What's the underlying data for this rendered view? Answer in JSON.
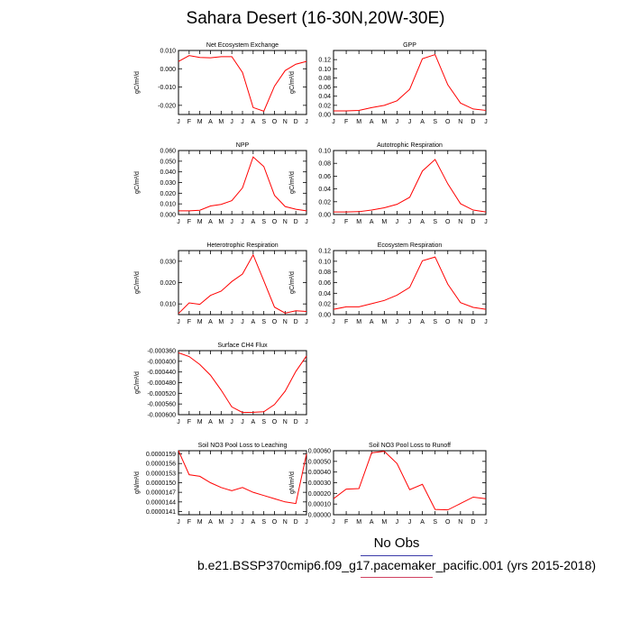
{
  "figure": {
    "title": "Sahara Desert (16-30N,20W-30E)",
    "legend_label": "No Obs",
    "caption": "b.e21.BSSP370cmip6.f09_g17.pacemaker_pacific.001 (yrs 2015-2018)",
    "line_color": "#ff0000",
    "legend_rule_color": "#3a3aa8",
    "caption_rule_color": "#d04060"
  },
  "chart_data": [
    {
      "type": "line",
      "title": "Net Ecosystem Exchange",
      "ylabel": "gC/m^2/d",
      "categories": [
        "J",
        "F",
        "M",
        "A",
        "M",
        "J",
        "J",
        "A",
        "S",
        "O",
        "N",
        "D",
        "J"
      ],
      "ylim": [
        -0.025,
        0.01
      ],
      "yticks": [
        0.01,
        0.0,
        -0.01,
        -0.02
      ],
      "yticklabels": [
        "0.010",
        "0.000",
        "-0.010",
        "-0.020"
      ],
      "series": [
        {
          "values": [
            0.004,
            0.0072,
            0.0062,
            0.006,
            0.0066,
            0.0066,
            -0.002,
            -0.0212,
            -0.0232,
            -0.0095,
            -0.001,
            0.0025,
            0.004
          ]
        }
      ]
    },
    {
      "type": "line",
      "title": "GPP",
      "ylabel": "gC/m^2/d",
      "categories": [
        "J",
        "F",
        "M",
        "A",
        "M",
        "J",
        "J",
        "A",
        "S",
        "O",
        "N",
        "D",
        "J"
      ],
      "ylim": [
        0.0,
        0.14
      ],
      "yticks": [
        0.0,
        0.02,
        0.04,
        0.06,
        0.08,
        0.1,
        0.12
      ],
      "yticklabels": [
        "0.00",
        "0.02",
        "0.04",
        "0.06",
        "0.08",
        "0.10",
        "0.12"
      ],
      "series": [
        {
          "values": [
            0.008,
            0.008,
            0.009,
            0.015,
            0.02,
            0.03,
            0.055,
            0.122,
            0.131,
            0.065,
            0.025,
            0.012,
            0.009
          ]
        }
      ]
    },
    {
      "type": "line",
      "title": "NPP",
      "ylabel": "gC/m^2/d",
      "categories": [
        "J",
        "F",
        "M",
        "A",
        "M",
        "J",
        "J",
        "A",
        "S",
        "O",
        "N",
        "D",
        "J"
      ],
      "ylim": [
        0.0,
        0.06
      ],
      "yticks": [
        0.0,
        0.01,
        0.02,
        0.03,
        0.04,
        0.05,
        0.06
      ],
      "yticklabels": [
        "0.000",
        "0.010",
        "0.020",
        "0.030",
        "0.040",
        "0.050",
        "0.060"
      ],
      "series": [
        {
          "values": [
            0.0035,
            0.0035,
            0.004,
            0.008,
            0.0095,
            0.013,
            0.025,
            0.054,
            0.045,
            0.018,
            0.0075,
            0.005,
            0.0035
          ]
        }
      ]
    },
    {
      "type": "line",
      "title": "Autotrophic Respiration",
      "ylabel": "gC/m^2/d",
      "categories": [
        "J",
        "F",
        "M",
        "A",
        "M",
        "J",
        "J",
        "A",
        "S",
        "O",
        "N",
        "D",
        "J"
      ],
      "ylim": [
        0.0,
        0.1
      ],
      "yticks": [
        0.0,
        0.02,
        0.04,
        0.06,
        0.08,
        0.1
      ],
      "yticklabels": [
        "0.00",
        "0.02",
        "0.04",
        "0.06",
        "0.08",
        "0.10"
      ],
      "series": [
        {
          "values": [
            0.004,
            0.004,
            0.0045,
            0.007,
            0.0105,
            0.016,
            0.027,
            0.068,
            0.086,
            0.048,
            0.017,
            0.007,
            0.004
          ]
        }
      ]
    },
    {
      "type": "line",
      "title": "Heterotrophic Respiration",
      "ylabel": "gC/m^2/d",
      "categories": [
        "J",
        "F",
        "M",
        "A",
        "M",
        "J",
        "J",
        "A",
        "S",
        "O",
        "N",
        "D",
        "J"
      ],
      "ylim": [
        0.005,
        0.035
      ],
      "yticks": [
        0.01,
        0.02,
        0.03
      ],
      "yticklabels": [
        "0.010",
        "0.020",
        "0.030"
      ],
      "series": [
        {
          "values": [
            0.0055,
            0.0105,
            0.0098,
            0.014,
            0.016,
            0.0205,
            0.024,
            0.033,
            0.0208,
            0.0085,
            0.0057,
            0.0068,
            0.0065
          ]
        }
      ]
    },
    {
      "type": "line",
      "title": "Ecosystem Respiration",
      "ylabel": "gC/m^2/d",
      "categories": [
        "J",
        "F",
        "M",
        "A",
        "M",
        "J",
        "J",
        "A",
        "S",
        "O",
        "N",
        "D",
        "J"
      ],
      "ylim": [
        0.0,
        0.12
      ],
      "yticks": [
        0.0,
        0.02,
        0.04,
        0.06,
        0.08,
        0.1,
        0.12
      ],
      "yticklabels": [
        "0.00",
        "0.02",
        "0.04",
        "0.06",
        "0.08",
        "0.10",
        "0.12"
      ],
      "series": [
        {
          "values": [
            0.01,
            0.0145,
            0.0145,
            0.0205,
            0.0265,
            0.0365,
            0.051,
            0.101,
            0.108,
            0.057,
            0.0225,
            0.0135,
            0.01
          ]
        }
      ]
    },
    {
      "type": "line",
      "title": "Surface CH4 Flux",
      "ylabel": "gC/m^2/d",
      "categories": [
        "J",
        "F",
        "M",
        "A",
        "M",
        "J",
        "J",
        "A",
        "S",
        "O",
        "N",
        "D",
        "J"
      ],
      "ylim": [
        -0.0006,
        -0.00036
      ],
      "yticks": [
        -0.00036,
        -0.0004,
        -0.00044,
        -0.00048,
        -0.00052,
        -0.00056,
        -0.0006
      ],
      "yticklabels": [
        "-0.000360",
        "-0.000400",
        "-0.000440",
        "-0.000480",
        "-0.000520",
        "-0.000560",
        "-0.000600"
      ],
      "series": [
        {
          "values": [
            -0.000368,
            -0.000382,
            -0.000412,
            -0.000452,
            -0.000508,
            -0.000571,
            -0.000592,
            -0.000591,
            -0.000589,
            -0.000562,
            -0.000512,
            -0.000438,
            -0.00038
          ]
        }
      ]
    },
    {
      "type": "line",
      "title": "Soil NO3 Pool Loss to Leaching",
      "ylabel": "gN/m^2/d",
      "categories": [
        "J",
        "F",
        "M",
        "A",
        "M",
        "J",
        "J",
        "A",
        "S",
        "O",
        "N",
        "D",
        "J"
      ],
      "ylim": [
        1.4e-05,
        1.6e-05
      ],
      "yticks": [
        1.41e-05,
        1.44e-05,
        1.47e-05,
        1.5e-05,
        1.53e-05,
        1.56e-05,
        1.59e-05
      ],
      "yticklabels": [
        "0.0000141",
        "0.0000144",
        "0.0000147",
        "0.0000150",
        "0.0000153",
        "0.0000156",
        "0.0000159"
      ],
      "series": [
        {
          "values": [
            1.6e-05,
            1.525e-05,
            1.52e-05,
            1.5e-05,
            1.485e-05,
            1.475e-05,
            1.485e-05,
            1.47e-05,
            1.46e-05,
            1.45e-05,
            1.44e-05,
            1.435e-05,
            1.59e-05
          ]
        }
      ]
    },
    {
      "type": "line",
      "title": "Soil NO3 Pool Loss to Runoff",
      "ylabel": "gN/m^2/d",
      "categories": [
        "J",
        "F",
        "M",
        "A",
        "M",
        "J",
        "J",
        "A",
        "S",
        "O",
        "N",
        "D",
        "J"
      ],
      "ylim": [
        0.0,
        0.0006
      ],
      "yticks": [
        0.0,
        0.0001,
        0.0002,
        0.0003,
        0.0004,
        0.0005,
        0.0006
      ],
      "yticklabels": [
        "0.00000",
        "0.00010",
        "0.00020",
        "0.00030",
        "0.00040",
        "0.00050",
        "0.00060"
      ],
      "series": [
        {
          "values": [
            0.00015,
            0.00024,
            0.000245,
            0.00058,
            0.000595,
            0.00048,
            0.000235,
            0.000285,
            5e-05,
            4.5e-05,
            0.000105,
            0.000165,
            0.00015
          ]
        }
      ]
    }
  ]
}
